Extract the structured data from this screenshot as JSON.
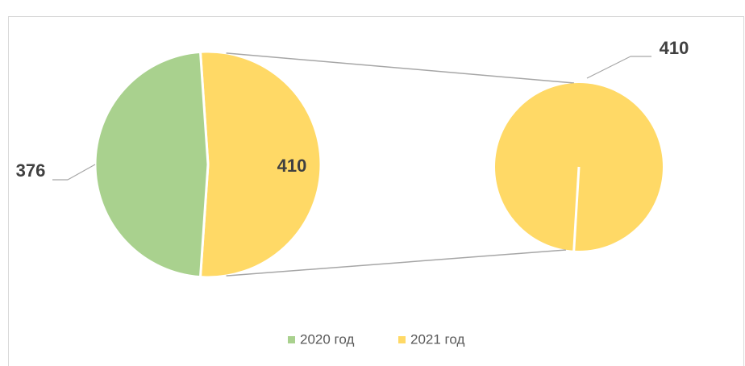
{
  "chart_data": {
    "type": "pie-of-pie",
    "categories": [
      "2020 год",
      "2021 год"
    ],
    "values": [
      376,
      410
    ],
    "colors": [
      "#a9d18e",
      "#ffd966"
    ],
    "legend": "bottom"
  }
}
